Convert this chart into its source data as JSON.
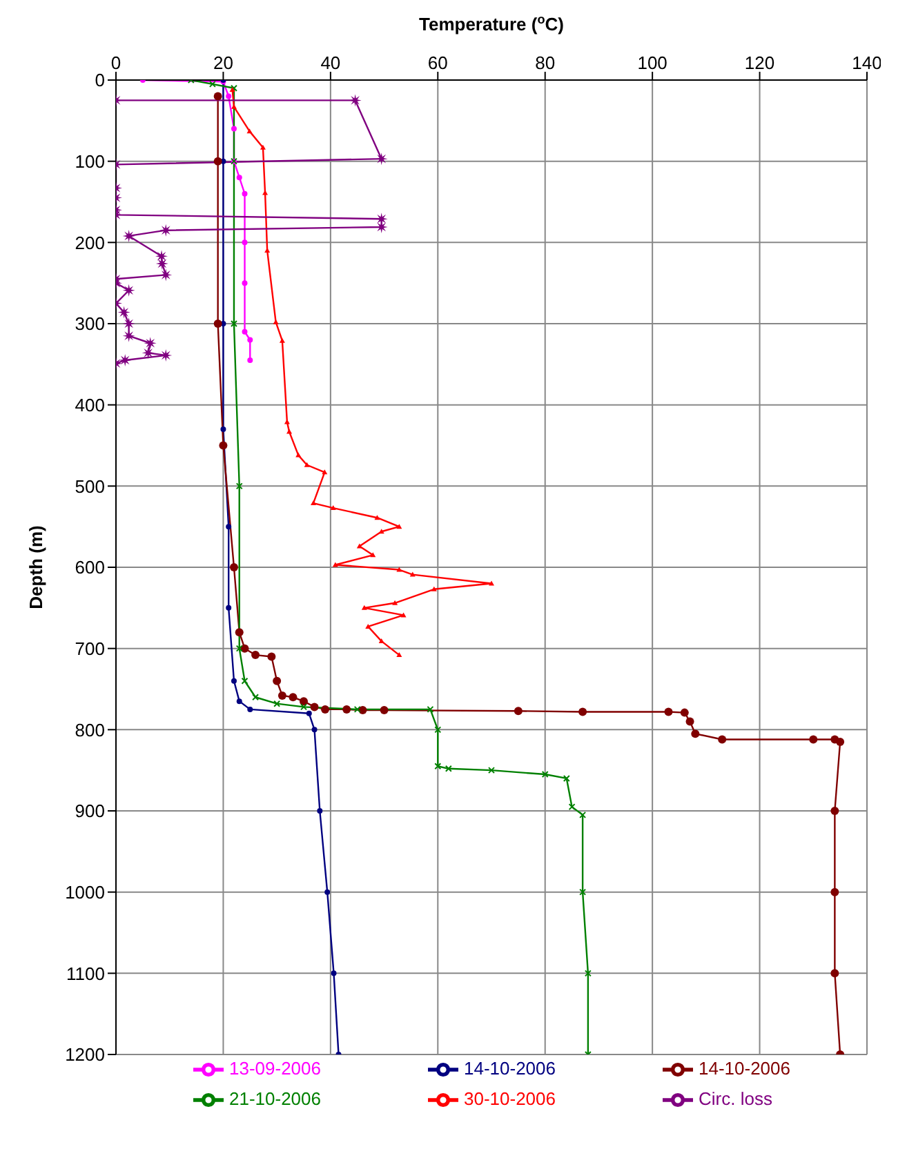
{
  "chart_data": {
    "type": "line",
    "xlabel": "Temperature ($^{o}$C)",
    "ylabel": "Depth (m)",
    "xlim": [
      0,
      140
    ],
    "xticks": [
      0,
      20,
      40,
      60,
      80,
      100,
      120,
      140
    ],
    "ylim": [
      1200,
      0
    ],
    "yticks": [
      0,
      100,
      200,
      300,
      400,
      500,
      600,
      700,
      800,
      900,
      1000,
      1100,
      1200
    ],
    "grid": true,
    "legend": "bottom",
    "series": [
      {
        "name": "13-09-2006",
        "color": "#ff00ff",
        "marker": "circle",
        "x": [
          5,
          20,
          21,
          22,
          22,
          23,
          24,
          24,
          24,
          24,
          25,
          25
        ],
        "values": [
          0,
          2,
          20,
          60,
          100,
          120,
          140,
          200,
          250,
          310,
          320,
          345
        ]
      },
      {
        "name": "14-10-2006",
        "color": "#000080",
        "marker": "circle",
        "x": [
          20,
          20,
          20,
          20,
          21,
          21,
          22,
          23,
          25,
          36,
          37,
          38,
          39.4,
          40.6,
          41.5
        ],
        "values": [
          0,
          100,
          300,
          430,
          550,
          650,
          740,
          765,
          775,
          780,
          800,
          900,
          1000,
          1100,
          1200
        ]
      },
      {
        "name": "14-10-2006",
        "color": "#800000",
        "marker": "circle",
        "x": [
          19,
          19,
          19,
          20,
          22,
          23,
          24,
          26,
          29,
          30,
          31,
          33,
          35,
          37,
          39,
          43,
          46,
          50,
          75,
          87,
          103,
          106,
          107,
          108,
          113,
          130,
          134,
          135,
          134,
          134,
          134,
          135
        ],
        "values": [
          20,
          100,
          300,
          450,
          600,
          680,
          700,
          708,
          710,
          740,
          758,
          760,
          765,
          772,
          775,
          775,
          776,
          776,
          777,
          778,
          778,
          779,
          790,
          805,
          812,
          812,
          812,
          815,
          900,
          1000,
          1100,
          1200
        ]
      },
      {
        "name": "21-10-2006",
        "color": "#008000",
        "marker": "cross",
        "x": [
          14,
          18,
          22,
          22,
          22,
          23,
          23,
          24,
          26,
          30,
          35,
          45,
          58.6,
          60,
          60,
          62,
          70,
          80,
          84,
          85,
          87,
          87,
          88,
          88
        ],
        "values": [
          0,
          5,
          10,
          100,
          300,
          500,
          700,
          740,
          760,
          768,
          772,
          775,
          775,
          800,
          845,
          848,
          850,
          855,
          860,
          895,
          905,
          1000,
          1100,
          1200
        ]
      },
      {
        "name": "30-10-2006",
        "color": "#ff0000",
        "marker": "triangle",
        "x": [
          21.7,
          22,
          24.9,
          27.4,
          27.8,
          28.2,
          29.8,
          31,
          31.9,
          32.3,
          34,
          35.6,
          38.9,
          36.8,
          40.5,
          48.7,
          52.8,
          49.5,
          45.4,
          47.9,
          40.9,
          52.8,
          55.3,
          70,
          59.3,
          52,
          46.3,
          53.6,
          47,
          49.5,
          52.8
        ],
        "values": [
          12,
          33,
          63,
          83,
          139,
          210,
          298,
          321,
          421,
          433,
          462,
          474,
          483,
          521,
          527,
          539,
          550,
          556,
          574,
          585,
          597,
          603,
          609,
          620,
          627,
          644,
          650,
          659,
          673,
          691,
          708
        ]
      },
      {
        "name": "Circ. loss",
        "color": "#800080",
        "marker": "star",
        "x": [
          0,
          44.6,
          49.5,
          0,
          0,
          0,
          0,
          0,
          49.5,
          49.5,
          9.3,
          2.4,
          8.5,
          8.6,
          9.3,
          0,
          0,
          2.4,
          0,
          1.5,
          2.4,
          2.4,
          6.4,
          6,
          9.3,
          1.7,
          0
        ],
        "values": [
          25,
          25,
          97,
          104,
          133,
          145,
          160,
          166,
          171,
          181,
          185,
          192,
          217,
          226,
          240,
          245,
          250,
          259,
          275,
          286,
          300,
          315,
          324,
          336,
          339,
          345,
          349
        ]
      }
    ]
  }
}
